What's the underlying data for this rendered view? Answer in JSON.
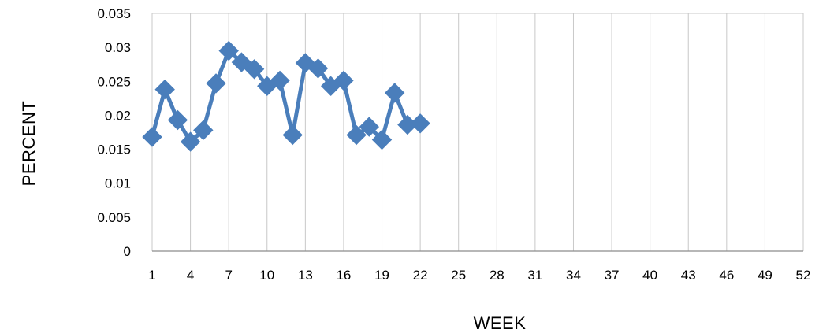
{
  "chart_data": {
    "type": "line",
    "title": "",
    "xlabel": "WEEK",
    "ylabel": "PERCENT",
    "xlim": [
      1,
      52
    ],
    "ylim": [
      0,
      0.035
    ],
    "x_ticks": [
      "1",
      "4",
      "7",
      "10",
      "13",
      "16",
      "19",
      "22",
      "25",
      "28",
      "31",
      "34",
      "37",
      "40",
      "43",
      "46",
      "49",
      "52"
    ],
    "y_ticks": [
      "0",
      "0.005",
      "0.01",
      "0.015",
      "0.02",
      "0.025",
      "0.03",
      "0.035"
    ],
    "grid": "vertical",
    "legend": "none",
    "series": [
      {
        "color": "#4a7ebb",
        "marker": "diamond",
        "x": [
          1,
          2,
          3,
          4,
          5,
          6,
          7,
          8,
          9,
          10,
          11,
          12,
          13,
          14,
          15,
          16,
          17,
          18,
          19,
          20,
          21,
          22
        ],
        "values": [
          0.0168,
          0.0238,
          0.0193,
          0.0161,
          0.0178,
          0.0247,
          0.0295,
          0.0278,
          0.0268,
          0.0243,
          0.0251,
          0.0171,
          0.0277,
          0.0269,
          0.0243,
          0.0251,
          0.0171,
          0.0183,
          0.0164,
          0.0233,
          0.0186,
          0.0188
        ]
      }
    ]
  }
}
